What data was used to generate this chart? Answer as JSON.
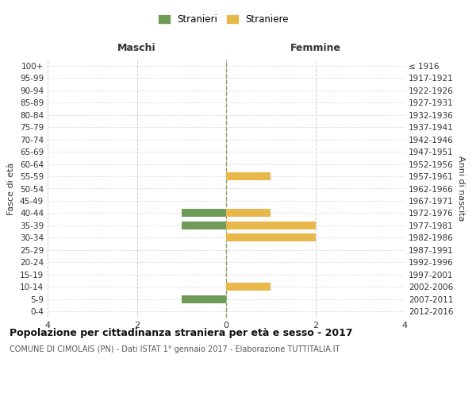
{
  "age_groups": [
    "0-4",
    "5-9",
    "10-14",
    "15-19",
    "20-24",
    "25-29",
    "30-34",
    "35-39",
    "40-44",
    "45-49",
    "50-54",
    "55-59",
    "60-64",
    "65-69",
    "70-74",
    "75-79",
    "80-84",
    "85-89",
    "90-94",
    "95-99",
    "100+"
  ],
  "birth_years": [
    "2012-2016",
    "2007-2011",
    "2002-2006",
    "1997-2001",
    "1992-1996",
    "1987-1991",
    "1982-1986",
    "1977-1981",
    "1972-1976",
    "1967-1971",
    "1962-1966",
    "1957-1961",
    "1952-1956",
    "1947-1951",
    "1942-1946",
    "1937-1941",
    "1932-1936",
    "1927-1931",
    "1922-1926",
    "1917-1921",
    "≤ 1916"
  ],
  "maschi_stranieri": [
    0,
    1,
    0,
    0,
    0,
    0,
    0,
    1,
    1,
    0,
    0,
    0,
    0,
    0,
    0,
    0,
    0,
    0,
    0,
    0,
    0
  ],
  "femmine_straniere": [
    0,
    0,
    1,
    0,
    0,
    0,
    2,
    2,
    1,
    0,
    0,
    1,
    0,
    0,
    0,
    0,
    0,
    0,
    0,
    0,
    0
  ],
  "color_maschi": "#6e9b55",
  "color_femmine": "#e8b84b",
  "title": "Popolazione per cittadinanza straniera per età e sesso - 2017",
  "subtitle": "COMUNE DI CIMOLAIS (PN) - Dati ISTAT 1° gennaio 2017 - Elaborazione TUTTITALIA.IT",
  "xlabel_left": "Maschi",
  "xlabel_right": "Femmine",
  "ylabel_left": "Fasce di età",
  "ylabel_right": "Anni di nascita",
  "legend_stranieri": "Stranieri",
  "legend_straniere": "Straniere",
  "xlim": 4,
  "background_color": "#ffffff",
  "grid_color": "#cccccc",
  "bar_height": 0.65
}
